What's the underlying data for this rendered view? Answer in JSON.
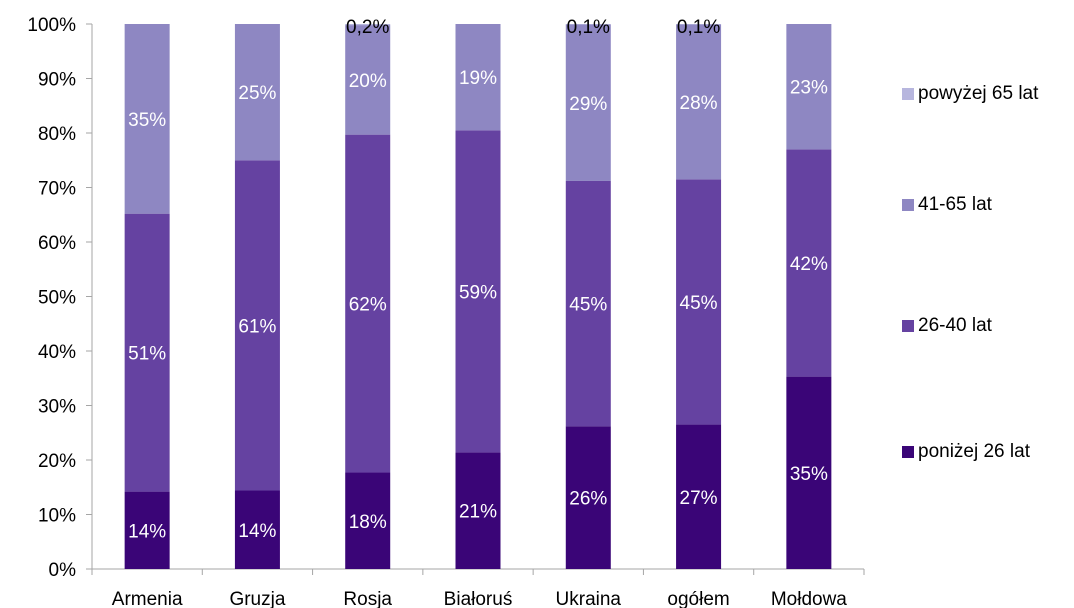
{
  "chart_data": {
    "type": "bar",
    "stacked": true,
    "stack_mode": "percent",
    "categories": [
      "Armenia",
      "Gruzja",
      "Rosja",
      "Białoruś",
      "Ukraina",
      "ogółem",
      "Mołdowa"
    ],
    "series": [
      {
        "name": "poniżej 26 lat",
        "color": "#3a0577",
        "values": [
          14.2,
          14.4,
          17.7,
          21.4,
          26.2,
          26.5,
          35.3
        ],
        "labels": [
          "14%",
          "14%",
          "18%",
          "21%",
          "26%",
          "27%",
          "35%"
        ]
      },
      {
        "name": "26-40 lat",
        "color": "#6542a1",
        "values": [
          51.0,
          60.6,
          62.0,
          59.1,
          45.0,
          45.0,
          41.7
        ],
        "labels": [
          "51%",
          "61%",
          "62%",
          "59%",
          "45%",
          "45%",
          "42%"
        ]
      },
      {
        "name": "41-65 lat",
        "color": "#8e87c2",
        "values": [
          34.8,
          25.0,
          20.1,
          19.5,
          28.7,
          28.4,
          23.0
        ],
        "labels": [
          "35%",
          "25%",
          "20%",
          "19%",
          "29%",
          "28%",
          "23%"
        ]
      },
      {
        "name": "powyżej 65 lat",
        "color": "#b7b6de",
        "values": [
          0,
          0,
          0.2,
          0,
          0.1,
          0.1,
          0
        ],
        "labels": [
          "",
          "",
          "0,2%",
          "",
          "0,1%",
          "0,1%",
          ""
        ]
      }
    ],
    "y_ticks": [
      "0%",
      "10%",
      "20%",
      "30%",
      "40%",
      "50%",
      "60%",
      "70%",
      "80%",
      "90%",
      "100%"
    ],
    "ylim": [
      0,
      100
    ],
    "grid": false,
    "legend_position": "right",
    "colors": {
      "axis": "#a6a6a6",
      "text": "#000000",
      "data_label": "#ffffff"
    }
  }
}
